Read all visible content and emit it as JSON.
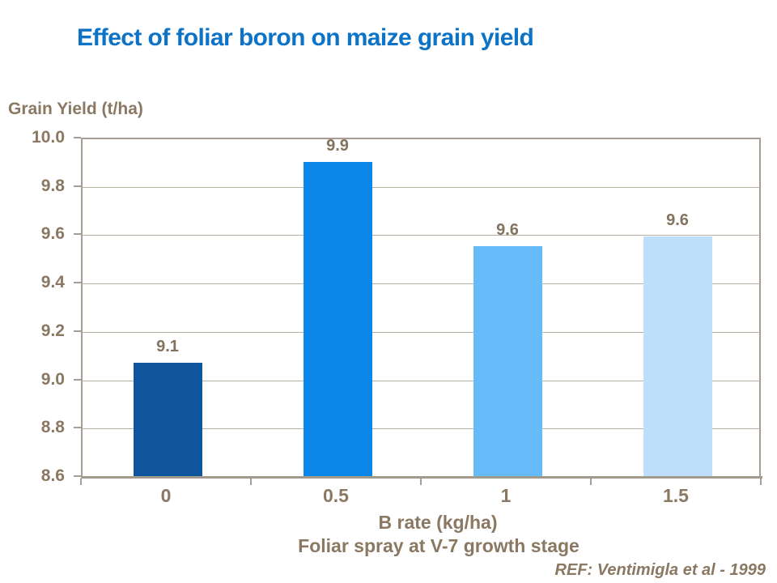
{
  "title": "Effect of foliar boron on maize grain yield",
  "colors": {
    "title_blue": "#0d73c6",
    "label_brown": "#8a7862",
    "gridline": "#b9b0a4",
    "axis_frame": "#a79d92"
  },
  "chart_data": {
    "type": "bar",
    "title": "Effect of foliar boron on maize grain yield",
    "ylabel": "Grain Yield (t/ha)",
    "xlabel": "B rate (kg/ha)",
    "x_subtitle": "Foliar spray at V-7 growth stage",
    "annotation": "REF: Ventimigla et al - 1999",
    "categories": [
      "0",
      "0.5",
      "1",
      "1.5"
    ],
    "values": [
      9.07,
      9.9,
      9.55,
      9.59
    ],
    "value_labels": [
      "9.1",
      "9.9",
      "9.6",
      "9.6"
    ],
    "bar_colors": [
      "#10569E",
      "#0A86E8",
      "#65BAF8",
      "#BEDFFB"
    ],
    "ylim": [
      8.6,
      10.0
    ],
    "ytick_step": 0.2,
    "ytick_labels": [
      "10.0",
      "9.8",
      "9.6",
      "9.4",
      "9.2",
      "9.0",
      "8.8",
      "8.6"
    ],
    "grid": true,
    "legend": "none"
  }
}
